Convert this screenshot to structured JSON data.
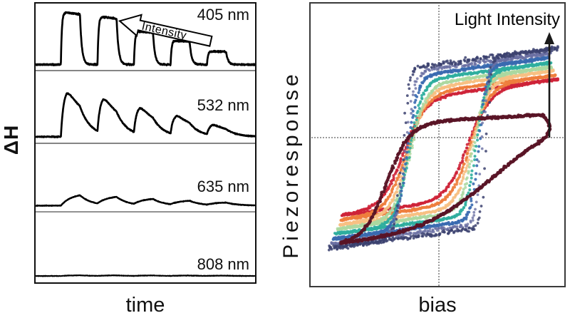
{
  "figure": {
    "type": "two-panel scientific figure",
    "left_title": "",
    "right_title": ""
  },
  "chart_data": [
    {
      "type": "line",
      "title": "Photothermal response pulse trains",
      "xlabel": "time",
      "ylabel": "ΔH",
      "annotation": "Intensity",
      "annotation_note": "hollow arrow pointing left, intensity decreases along pulse sequence",
      "line_color": "#000000",
      "grid": false,
      "pulse_start_times": [
        0.115,
        0.282,
        0.448,
        0.615,
        0.781
      ],
      "pulse_on_fraction": 0.087,
      "baseline_fraction": 0.91,
      "panels": [
        {
          "label": "405 nm",
          "profile": "square",
          "pulse_amplitudes": [
            0.79,
            0.72,
            0.5,
            0.36,
            0.2
          ],
          "noise": 0.013,
          "line_width": 2.7
        },
        {
          "label": "532 nm",
          "profile": "rise-decay",
          "pulse_amplitudes": [
            0.67,
            0.53,
            0.4,
            0.29,
            0.16
          ],
          "noise": 0.008,
          "line_width": 2.7
        },
        {
          "label": "635 nm",
          "profile": "slow-rise",
          "pulse_amplitudes": [
            0.18,
            0.145,
            0.11,
            0.08,
            0.05
          ],
          "noise": 0.005,
          "line_width": 2.4
        },
        {
          "label": "808 nm",
          "profile": "slow-rise",
          "pulse_amplitudes": [
            0.012,
            0.01,
            0.009,
            0.008,
            0.006
          ],
          "noise": 0.004,
          "line_width": 2.1
        }
      ]
    },
    {
      "type": "scatter",
      "title": "Piezoresponse hysteresis loops vs light intensity",
      "xlabel": "bias",
      "ylabel": "Piezoresponse",
      "annotation": "Light Intensity",
      "annotation_note": "vertical arrow pointing up; loop color encodes increasing light intensity",
      "gridlines": {
        "style": "dotted",
        "color": "#9b9b9b",
        "vertical_at_fraction": 0.503,
        "horizontal_at_fraction": 0.468
      },
      "legend_order": "dark red = lowest intensity, red, orange, peach, green, teal, blue, slate, dark navy = highest intensity",
      "loops": [
        {
          "intensity_rank": 2,
          "color": "#ce2438",
          "amp": 0.19,
          "w0": 0.515,
          "tilt": -0.12,
          "c_rise": 0.62,
          "k_rise": 0.085,
          "c_fall": 0.365,
          "k_fall": 0.085,
          "u_min": 0.125,
          "u_max": 0.975,
          "dot": 2.0,
          "jitter": 0.0045,
          "alpha": 0.9,
          "density": 300
        },
        {
          "intensity_rank": 3,
          "color": "#ee7e3d",
          "amp": 0.205,
          "w0": 0.515,
          "tilt": -0.12,
          "c_rise": 0.63,
          "k_rise": 0.075,
          "c_fall": 0.378,
          "k_fall": 0.078,
          "u_min": 0.12,
          "u_max": 0.965,
          "dot": 2.0,
          "jitter": 0.0045,
          "alpha": 0.9,
          "density": 300
        },
        {
          "intensity_rank": 4,
          "color": "#f7c083",
          "amp": 0.222,
          "w0": 0.515,
          "tilt": -0.12,
          "c_rise": 0.638,
          "k_rise": 0.062,
          "c_fall": 0.386,
          "k_fall": 0.07,
          "u_min": 0.115,
          "u_max": 0.955,
          "dot": 2.0,
          "jitter": 0.0045,
          "alpha": 0.9,
          "density": 300
        },
        {
          "intensity_rank": 5,
          "color": "#abd8a0",
          "amp": 0.236,
          "w0": 0.515,
          "tilt": -0.12,
          "c_rise": 0.645,
          "k_rise": 0.05,
          "c_fall": 0.392,
          "k_fall": 0.062,
          "u_min": 0.11,
          "u_max": 0.95,
          "dot": 2.0,
          "jitter": 0.005,
          "alpha": 0.85,
          "density": 300
        },
        {
          "intensity_rank": 6,
          "color": "#2fae9f",
          "amp": 0.252,
          "w0": 0.515,
          "tilt": -0.12,
          "c_rise": 0.655,
          "k_rise": 0.04,
          "c_fall": 0.388,
          "k_fall": 0.052,
          "u_min": 0.1,
          "u_max": 0.945,
          "dot": 2.0,
          "jitter": 0.005,
          "alpha": 0.9,
          "density": 300
        },
        {
          "intensity_rank": 7,
          "color": "#3a6ab0",
          "amp": 0.27,
          "w0": 0.515,
          "tilt": -0.12,
          "c_rise": 0.665,
          "k_rise": 0.03,
          "c_fall": 0.38,
          "k_fall": 0.042,
          "u_min": 0.09,
          "u_max": 0.94,
          "dot": 2.0,
          "jitter": 0.0055,
          "alpha": 0.9,
          "density": 300
        },
        {
          "intensity_rank": 8,
          "color": "#6a6fa2",
          "amp": 0.286,
          "w0": 0.515,
          "tilt": -0.12,
          "c_rise": 0.675,
          "k_rise": 0.024,
          "c_fall": 0.372,
          "k_fall": 0.034,
          "u_min": 0.082,
          "u_max": 0.945,
          "dot": 1.9,
          "jitter": 0.0085,
          "alpha": 0.8,
          "density": 220
        },
        {
          "intensity_rank": 9,
          "color": "#3c4270",
          "amp": 0.3,
          "w0": 0.515,
          "tilt": -0.12,
          "c_rise": 0.69,
          "k_rise": 0.019,
          "c_fall": 0.36,
          "k_fall": 0.026,
          "u_min": 0.075,
          "u_max": 0.975,
          "dot": 1.9,
          "jitter": 0.0095,
          "alpha": 0.85,
          "density": 230
        },
        {
          "intensity_rank": 1,
          "color": "#5a1426",
          "amp": 0.21,
          "w0": 0.625,
          "tilt": -0.05,
          "c_rise": 0.72,
          "k_rise": 0.3,
          "c_fall": 0.3,
          "k_fall": 0.09,
          "u_min": 0.119,
          "u_max": 0.914,
          "dot": 2.4,
          "jitter": 0.0045,
          "alpha": 0.95,
          "density": 280
        }
      ]
    }
  ]
}
